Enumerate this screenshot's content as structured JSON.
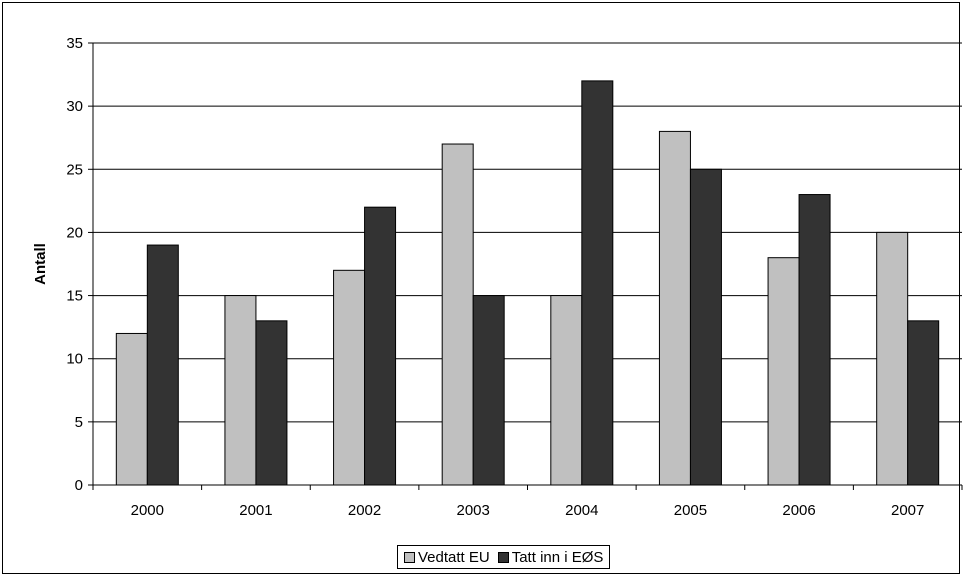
{
  "chart_data": {
    "type": "bar",
    "title": "",
    "xlabel": "",
    "ylabel": "Antall",
    "ylim": [
      0,
      35
    ],
    "yticks": [
      0,
      5,
      10,
      15,
      20,
      25,
      30,
      35
    ],
    "grid": true,
    "legend_position": "bottom",
    "categories": [
      "2000",
      "2001",
      "2002",
      "2003",
      "2004",
      "2005",
      "2006",
      "2007"
    ],
    "series": [
      {
        "name": "Vedtatt EU",
        "color": "#c0c0c0",
        "values": [
          12,
          15,
          17,
          27,
          15,
          28,
          18,
          20
        ]
      },
      {
        "name": "Tatt inn i EØS",
        "color": "#333333",
        "values": [
          19,
          13,
          22,
          15,
          32,
          25,
          23,
          13
        ]
      }
    ]
  }
}
